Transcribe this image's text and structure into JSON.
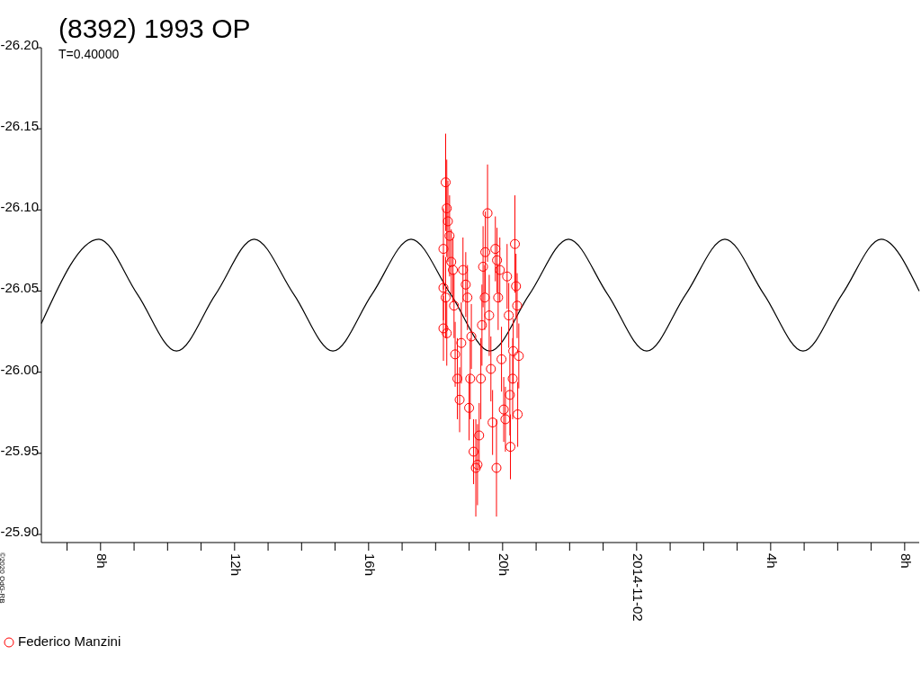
{
  "chart_data": {
    "type": "scatter",
    "title": "(8392) 1993 OP",
    "subtitle": "T=0.40000",
    "annotations": [
      "©2020 OdG-RB"
    ],
    "xlim": [
      "2014-11-01T06:14",
      "2014-11-02T08:26"
    ],
    "xticks": [
      {
        "value": "2014-11-01T07:00",
        "label": null
      },
      {
        "value": "2014-11-01T08:00",
        "label": "8h"
      },
      {
        "value": "2014-11-01T09:00",
        "label": null
      },
      {
        "value": "2014-11-01T10:00",
        "label": null
      },
      {
        "value": "2014-11-01T11:00",
        "label": null
      },
      {
        "value": "2014-11-01T12:00",
        "label": "12h"
      },
      {
        "value": "2014-11-01T13:00",
        "label": null
      },
      {
        "value": "2014-11-01T14:00",
        "label": null
      },
      {
        "value": "2014-11-01T15:00",
        "label": null
      },
      {
        "value": "2014-11-01T16:00",
        "label": "16h"
      },
      {
        "value": "2014-11-01T17:00",
        "label": null
      },
      {
        "value": "2014-11-01T18:00",
        "label": null
      },
      {
        "value": "2014-11-01T19:00",
        "label": null
      },
      {
        "value": "2014-11-01T20:00",
        "label": "20h"
      },
      {
        "value": "2014-11-01T21:00",
        "label": null
      },
      {
        "value": "2014-11-01T22:00",
        "label": null
      },
      {
        "value": "2014-11-01T23:00",
        "label": null
      },
      {
        "value": "2014-11-02T00:00",
        "label": "2014-11-02"
      },
      {
        "value": "2014-11-02T01:00",
        "label": null
      },
      {
        "value": "2014-11-02T02:00",
        "label": null
      },
      {
        "value": "2014-11-02T03:00",
        "label": null
      },
      {
        "value": "2014-11-02T04:00",
        "label": "4h"
      },
      {
        "value": "2014-11-02T05:00",
        "label": null
      },
      {
        "value": "2014-11-02T06:00",
        "label": null
      },
      {
        "value": "2014-11-02T07:00",
        "label": null
      },
      {
        "value": "2014-11-02T08:00",
        "label": "8h"
      }
    ],
    "ylim": [
      -25.895,
      -26.2
    ],
    "yticks": [
      {
        "value": -26.2,
        "label": "-26.20"
      },
      {
        "value": -26.15,
        "label": "-26.15"
      },
      {
        "value": -26.1,
        "label": "-26.10"
      },
      {
        "value": -26.05,
        "label": "-26.05"
      },
      {
        "value": -26.0,
        "label": "-26.00"
      },
      {
        "value": -25.95,
        "label": "-25.95"
      },
      {
        "value": -25.9,
        "label": "-25.90"
      }
    ],
    "grid": false,
    "legend": "bottom left",
    "series": [
      {
        "type": "line",
        "color": "#000000",
        "marker": "none",
        "line_style": "solid",
        "x": [
          "2014-11-01T06:14",
          "2014-11-01T07:57",
          "2014-11-01T09:06",
          "2014-11-01T10:16",
          "2014-11-01T11:26",
          "2014-11-01T12:35",
          "2014-11-01T13:46",
          "2014-11-01T14:56",
          "2014-11-01T16:06",
          "2014-11-01T17:16",
          "2014-11-01T18:27",
          "2014-11-01T19:37",
          "2014-11-01T20:48",
          "2014-11-01T21:58",
          "2014-11-01T23:08",
          "2014-11-02T00:18",
          "2014-11-02T01:28",
          "2014-11-02T02:38",
          "2014-11-02T03:48",
          "2014-11-02T04:58",
          "2014-11-02T06:08",
          "2014-11-02T07:18",
          "2014-11-02T08:26"
        ],
        "values": [
          -26.03,
          -26.082,
          -26.048,
          -26.013,
          -26.048,
          -26.082,
          -26.048,
          -26.013,
          -26.048,
          -26.082,
          -26.048,
          -26.013,
          -26.048,
          -26.082,
          -26.048,
          -26.013,
          -26.048,
          -26.082,
          -26.048,
          -26.013,
          -26.048,
          -26.082,
          -26.05
        ]
      },
      {
        "name": "Federico Manzini",
        "color": "#ff0000",
        "marker": "circle",
        "x": [
          "2014-11-01T18:18",
          "2014-11-01T18:14",
          "2014-11-01T18:20",
          "2014-11-01T18:22",
          "2014-11-01T18:14",
          "2014-11-01T18:18",
          "2014-11-01T18:14",
          "2014-11-01T18:20",
          "2014-11-01T18:25",
          "2014-11-01T18:28",
          "2014-11-01T18:31",
          "2014-11-01T18:33",
          "2014-11-01T18:35",
          "2014-11-01T18:39",
          "2014-11-01T18:43",
          "2014-11-01T18:46",
          "2014-11-01T18:49",
          "2014-11-01T18:54",
          "2014-11-01T18:57",
          "2014-11-01T19:00",
          "2014-11-01T19:02",
          "2014-11-01T19:04",
          "2014-11-01T19:08",
          "2014-11-01T19:12",
          "2014-11-01T19:15",
          "2014-11-01T19:18",
          "2014-11-01T19:21",
          "2014-11-01T19:23",
          "2014-11-01T19:25",
          "2014-11-01T19:28",
          "2014-11-01T19:29",
          "2014-11-01T19:33",
          "2014-11-01T19:36",
          "2014-11-01T19:39",
          "2014-11-01T19:42",
          "2014-11-01T19:47",
          "2014-11-01T19:49",
          "2014-11-01T19:50",
          "2014-11-01T19:52",
          "2014-11-01T19:55",
          "2014-11-01T19:58",
          "2014-11-01T20:02",
          "2014-11-01T20:05",
          "2014-11-01T20:08",
          "2014-11-01T20:11",
          "2014-11-01T20:13",
          "2014-11-01T20:14",
          "2014-11-01T20:18",
          "2014-11-01T20:19",
          "2014-11-01T20:22",
          "2014-11-01T20:24",
          "2014-11-01T20:26",
          "2014-11-01T20:27",
          "2014-11-01T20:29"
        ],
        "values": [
          -26.117,
          -26.076,
          -26.101,
          -26.093,
          -26.052,
          -26.046,
          -26.027,
          -26.024,
          -26.084,
          -26.068,
          -26.063,
          -26.041,
          -26.011,
          -25.996,
          -25.983,
          -26.018,
          -26.063,
          -26.054,
          -26.046,
          -25.978,
          -25.996,
          -26.022,
          -25.951,
          -25.941,
          -25.943,
          -25.961,
          -25.996,
          -26.029,
          -26.065,
          -26.046,
          -26.074,
          -26.098,
          -26.035,
          -26.002,
          -25.969,
          -26.076,
          -25.941,
          -26.069,
          -26.046,
          -26.063,
          -26.008,
          -25.977,
          -25.971,
          -26.059,
          -26.035,
          -25.986,
          -25.954,
          -25.996,
          -26.013,
          -26.079,
          -26.053,
          -26.041,
          -25.974,
          -26.01
        ],
        "errors": [
          0.03,
          0.025,
          0.03,
          0.025,
          0.02,
          0.025,
          0.02,
          0.02,
          0.025,
          0.02,
          0.02,
          0.02,
          0.02,
          0.025,
          0.02,
          0.025,
          0.02,
          0.02,
          0.02,
          0.02,
          0.025,
          0.02,
          0.02,
          0.03,
          0.025,
          0.02,
          0.025,
          0.025,
          0.025,
          0.02,
          0.025,
          0.03,
          0.025,
          0.02,
          0.02,
          0.02,
          0.03,
          0.02,
          0.02,
          0.02,
          0.02,
          0.02,
          0.02,
          0.02,
          0.02,
          0.025,
          0.02,
          0.025,
          0.02,
          0.03,
          0.02,
          0.02,
          0.02,
          0.02
        ]
      }
    ]
  }
}
